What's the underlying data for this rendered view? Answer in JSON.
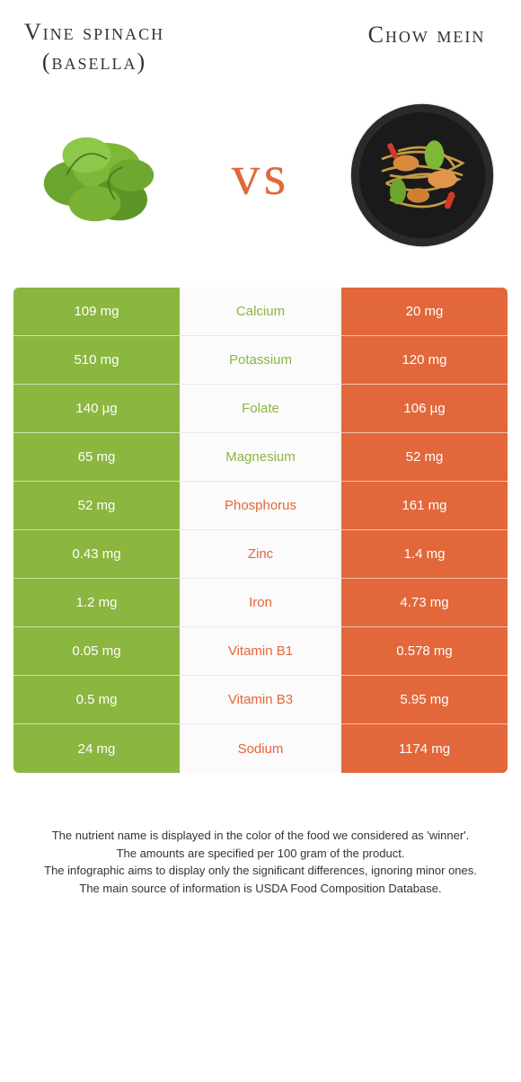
{
  "colors": {
    "left": "#8bb63f",
    "right": "#e2673a",
    "mid_bg": "#fbfbfb",
    "mid_border": "#e8e8e8",
    "text": "#333333",
    "white": "#ffffff"
  },
  "food_left": {
    "name": "Vine spinach (basella)",
    "color": "#8bb63f"
  },
  "food_right": {
    "name": "Chow mein",
    "color": "#e2673a"
  },
  "vs_label": "vs",
  "nutrients": [
    {
      "name": "Calcium",
      "left": "109 mg",
      "right": "20 mg",
      "winner": "left"
    },
    {
      "name": "Potassium",
      "left": "510 mg",
      "right": "120 mg",
      "winner": "left"
    },
    {
      "name": "Folate",
      "left": "140 µg",
      "right": "106 µg",
      "winner": "left"
    },
    {
      "name": "Magnesium",
      "left": "65 mg",
      "right": "52 mg",
      "winner": "left"
    },
    {
      "name": "Phosphorus",
      "left": "52 mg",
      "right": "161 mg",
      "winner": "right"
    },
    {
      "name": "Zinc",
      "left": "0.43 mg",
      "right": "1.4 mg",
      "winner": "right"
    },
    {
      "name": "Iron",
      "left": "1.2 mg",
      "right": "4.73 mg",
      "winner": "right"
    },
    {
      "name": "Vitamin B1",
      "left": "0.05 mg",
      "right": "0.578 mg",
      "winner": "right"
    },
    {
      "name": "Vitamin B3",
      "left": "0.5 mg",
      "right": "5.95 mg",
      "winner": "right"
    },
    {
      "name": "Sodium",
      "left": "24 mg",
      "right": "1174 mg",
      "winner": "right"
    }
  ],
  "footnotes": [
    "The nutrient name is displayed in the color of the food we considered as 'winner'.",
    "The amounts are specified per 100 gram of the product.",
    "The infographic aims to display only the significant differences, ignoring minor ones.",
    "The main source of information is USDA Food Composition Database."
  ]
}
